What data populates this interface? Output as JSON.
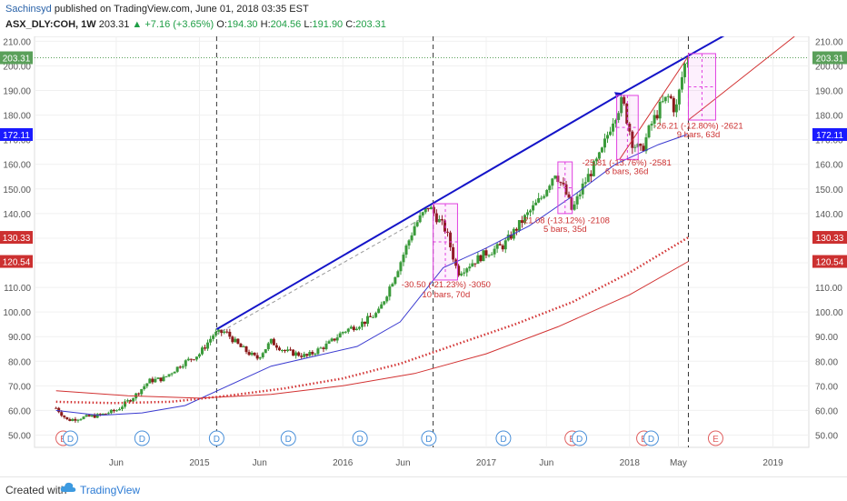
{
  "header": {
    "author": "Sachinsyd",
    "published": "published on TradingView.com, June 01, 2018 03:35 EST",
    "symbol": "ASX_DLY:COH, 1W",
    "last": "203.31",
    "change": "+7.16 (+3.65%)",
    "open_label": "O:",
    "open": "194.30",
    "high_label": "H:",
    "high": "204.56",
    "low_label": "L:",
    "low": "191.90",
    "close_label": "C:",
    "close": "203.31"
  },
  "footer": {
    "created_with": "Created with",
    "brand": "TradingView"
  },
  "colors": {
    "candle_up": "#3a9a3a",
    "candle_down": "#8b1a1a",
    "trend": "#1414c8",
    "ma_blue": "#3a3ad0",
    "ma_red": "#d23232",
    "box": "#e040e0",
    "label_red": "#cc3030",
    "label_blue": "#1a1aff",
    "price_green": "#5aa05a",
    "event": "#4a90d9",
    "earn": "#e06060"
  },
  "chart_data": {
    "type": "candlestick",
    "ylim": [
      45,
      212
    ],
    "y_ticks": [
      50,
      60,
      70,
      80,
      90,
      100,
      110,
      120,
      130,
      140,
      150,
      160,
      170,
      180,
      190,
      200,
      210
    ],
    "y_tick_labels": [
      "50.00",
      "60.00",
      "70.00",
      "80.00",
      "90.00",
      "100.00",
      "110.00",
      "120.00",
      "130.00",
      "140.00",
      "150.00",
      "160.00",
      "170.00",
      "180.00",
      "190.00",
      "200.00",
      "210.00"
    ],
    "x_tick_labels": [
      {
        "t": 2014.42,
        "label": "Jun"
      },
      {
        "t": 2015.0,
        "label": "2015"
      },
      {
        "t": 2015.42,
        "label": "Jun"
      },
      {
        "t": 2016.0,
        "label": "2016"
      },
      {
        "t": 2016.42,
        "label": "Jun"
      },
      {
        "t": 2017.0,
        "label": "2017"
      },
      {
        "t": 2017.42,
        "label": "Jun"
      },
      {
        "t": 2018.0,
        "label": "2018"
      },
      {
        "t": 2018.34,
        "label": "May"
      },
      {
        "t": 2019.0,
        "label": "2019"
      }
    ],
    "price_path": [
      [
        2014.0,
        61
      ],
      [
        2014.08,
        56
      ],
      [
        2014.17,
        57
      ],
      [
        2014.3,
        58
      ],
      [
        2014.42,
        60
      ],
      [
        2014.55,
        66
      ],
      [
        2014.65,
        72
      ],
      [
        2014.75,
        73
      ],
      [
        2014.88,
        79
      ],
      [
        2015.0,
        83
      ],
      [
        2015.1,
        91
      ],
      [
        2015.18,
        92
      ],
      [
        2015.28,
        86
      ],
      [
        2015.4,
        81
      ],
      [
        2015.5,
        88
      ],
      [
        2015.6,
        84
      ],
      [
        2015.75,
        82
      ],
      [
        2015.9,
        87
      ],
      [
        2016.0,
        92
      ],
      [
        2016.15,
        96
      ],
      [
        2016.25,
        100
      ],
      [
        2016.4,
        120
      ],
      [
        2016.5,
        135
      ],
      [
        2016.6,
        143
      ],
      [
        2016.72,
        133
      ],
      [
        2016.8,
        116
      ],
      [
        2016.9,
        120
      ],
      [
        2017.0,
        124
      ],
      [
        2017.12,
        127
      ],
      [
        2017.25,
        137
      ],
      [
        2017.38,
        146
      ],
      [
        2017.48,
        157
      ],
      [
        2017.55,
        149
      ],
      [
        2017.6,
        141
      ],
      [
        2017.68,
        152
      ],
      [
        2017.8,
        164
      ],
      [
        2017.88,
        178
      ],
      [
        2017.95,
        186
      ],
      [
        2018.02,
        169
      ],
      [
        2018.08,
        165
      ],
      [
        2018.15,
        176
      ],
      [
        2018.22,
        184
      ],
      [
        2018.28,
        188
      ],
      [
        2018.32,
        181
      ],
      [
        2018.38,
        200
      ],
      [
        2018.41,
        203.31
      ]
    ],
    "series": [
      {
        "name": "",
        "kind": "ma_blue",
        "points": [
          [
            2014.0,
            60
          ],
          [
            2014.3,
            58
          ],
          [
            2014.6,
            59
          ],
          [
            2014.9,
            62
          ],
          [
            2015.2,
            70
          ],
          [
            2015.5,
            78
          ],
          [
            2015.8,
            82
          ],
          [
            2016.1,
            86
          ],
          [
            2016.4,
            96
          ],
          [
            2016.7,
            118
          ],
          [
            2017.0,
            126
          ],
          [
            2017.3,
            135
          ],
          [
            2017.6,
            147
          ],
          [
            2017.9,
            160
          ],
          [
            2018.2,
            168
          ],
          [
            2018.4,
            172.11
          ]
        ]
      },
      {
        "name": "",
        "kind": "ma_red_dotted",
        "points": [
          [
            2014.0,
            63.5
          ],
          [
            2014.4,
            63
          ],
          [
            2014.8,
            63.5
          ],
          [
            2015.2,
            66
          ],
          [
            2015.6,
            69
          ],
          [
            2016.0,
            73
          ],
          [
            2016.4,
            79
          ],
          [
            2016.8,
            87
          ],
          [
            2017.2,
            95
          ],
          [
            2017.6,
            104
          ],
          [
            2018.0,
            116
          ],
          [
            2018.41,
            130.33
          ]
        ]
      },
      {
        "name": "",
        "kind": "ma_red",
        "points": [
          [
            2014.0,
            68
          ],
          [
            2014.5,
            66
          ],
          [
            2015.0,
            65
          ],
          [
            2015.5,
            66.5
          ],
          [
            2016.0,
            70
          ],
          [
            2016.5,
            75
          ],
          [
            2017.0,
            83
          ],
          [
            2017.5,
            94
          ],
          [
            2018.0,
            107
          ],
          [
            2018.41,
            120.54
          ]
        ]
      }
    ],
    "trendlines": [
      {
        "kind": "blue",
        "x1": 2015.12,
        "y1": 93,
        "x2": 2017.95,
        "y2": 189,
        "arrow": true
      },
      {
        "kind": "blue",
        "x1": 2017.95,
        "y1": 189,
        "x2": 2018.68,
        "y2": 213
      },
      {
        "kind": "dash",
        "x1": 2015.12,
        "y1": 91,
        "x2": 2016.55,
        "y2": 138
      },
      {
        "kind": "red",
        "x1": 2017.93,
        "y1": 162,
        "x2": 2018.41,
        "y2": 204
      },
      {
        "kind": "red",
        "x1": 2018.41,
        "y1": 178,
        "x2": 2019.15,
        "y2": 212
      }
    ],
    "vlines": [
      2015.12,
      2016.63,
      2018.41
    ],
    "boxes": [
      {
        "x1": 2016.63,
        "x2": 2016.8,
        "y1": 113,
        "y2": 144,
        "dir": "down"
      },
      {
        "x1": 2017.5,
        "x2": 2017.6,
        "y1": 140,
        "y2": 161,
        "dir": "down"
      },
      {
        "x1": 2017.91,
        "x2": 2018.06,
        "y1": 162,
        "y2": 188,
        "dir": "down"
      },
      {
        "x1": 2018.41,
        "x2": 2018.6,
        "y1": 178,
        "y2": 205,
        "dir": "down"
      }
    ],
    "annotations": [
      {
        "x": 2016.72,
        "y": 110,
        "text": "-30.50 (-21.23%) -3050"
      },
      {
        "x": 2016.72,
        "y": 106,
        "text": "10 bars, 70d"
      },
      {
        "x": 2017.55,
        "y": 136,
        "text": "-21.08 (-13.12%) -2108"
      },
      {
        "x": 2017.55,
        "y": 132.5,
        "text": "5 bars, 35d"
      },
      {
        "x": 2017.98,
        "y": 159.5,
        "text": "-25.81 (-13.76%) -2581"
      },
      {
        "x": 2017.98,
        "y": 156,
        "text": "6 bars, 36d"
      },
      {
        "x": 2018.48,
        "y": 174.5,
        "text": "-26.21 (-12.80%) -2621"
      },
      {
        "x": 2018.48,
        "y": 171,
        "text": "9 bars, 63d"
      }
    ],
    "price_labels": [
      {
        "value": 203.31,
        "text": "203.31",
        "kind": "green",
        "y": 203.31
      },
      {
        "value": 172.11,
        "text": "172.11",
        "kind": "blue",
        "y": 172.11
      },
      {
        "value": 130.33,
        "text": "130.33",
        "kind": "red",
        "y": 130.33
      },
      {
        "value": 120.54,
        "text": "120.54",
        "kind": "red",
        "y": 120.54
      }
    ],
    "events": [
      {
        "t": 2014.05,
        "label": "E",
        "kind": "earn"
      },
      {
        "t": 2014.1,
        "label": "D",
        "kind": "div"
      },
      {
        "t": 2014.6,
        "label": "D",
        "kind": "div"
      },
      {
        "t": 2015.12,
        "label": "D",
        "kind": "div"
      },
      {
        "t": 2015.62,
        "label": "D",
        "kind": "div"
      },
      {
        "t": 2016.12,
        "label": "D",
        "kind": "div"
      },
      {
        "t": 2016.6,
        "label": "D",
        "kind": "div"
      },
      {
        "t": 2017.12,
        "label": "D",
        "kind": "div"
      },
      {
        "t": 2017.6,
        "label": "E",
        "kind": "earn"
      },
      {
        "t": 2017.65,
        "label": "D",
        "kind": "div"
      },
      {
        "t": 2018.1,
        "label": "E",
        "kind": "earn"
      },
      {
        "t": 2018.15,
        "label": "D",
        "kind": "div"
      },
      {
        "t": 2018.6,
        "label": "E",
        "kind": "earn"
      }
    ]
  }
}
